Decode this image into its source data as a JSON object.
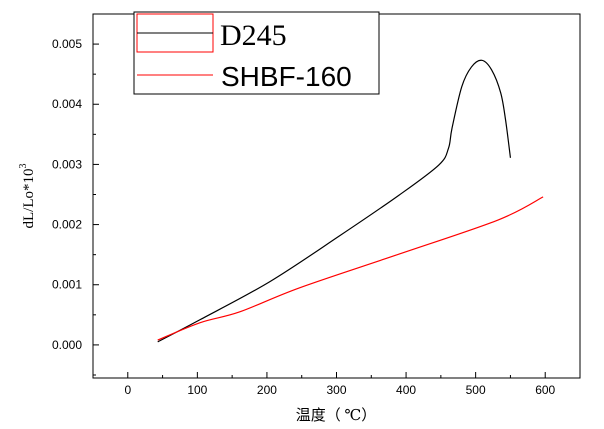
{
  "chart_data": {
    "type": "line",
    "title": "",
    "xlabel": "温度（ ℃）",
    "ylabel": "dL/Lo*10",
    "ylabel_superscript": "3",
    "xlim": [
      -50,
      650
    ],
    "ylim": [
      -0.00055,
      0.0055
    ],
    "xticks": [
      0,
      100,
      200,
      300,
      400,
      500,
      600
    ],
    "xtick_labels": [
      "0",
      "100",
      "200",
      "300",
      "400",
      "500",
      "600"
    ],
    "yticks": [
      0.0,
      0.001,
      0.002,
      0.003,
      0.004,
      0.005
    ],
    "ytick_labels": [
      "0.000",
      "0.001",
      "0.002",
      "0.003",
      "0.004",
      "0.005"
    ],
    "grid": false,
    "legend_position": "top-left",
    "series": [
      {
        "name": "D245",
        "color": "#000000",
        "x": [
          43,
          104,
          204,
          304,
          390,
          447,
          461,
          466,
          480,
          494,
          509,
          523,
          536,
          543,
          550
        ],
        "y": [
          5e-05,
          0.00042,
          0.00105,
          0.00181,
          0.00249,
          0.00299,
          0.00327,
          0.0036,
          0.00429,
          0.00462,
          0.00473,
          0.00457,
          0.00419,
          0.00374,
          0.00311
        ]
      },
      {
        "name": "SHBF-160",
        "color": "#ff0000",
        "x": [
          43,
          104,
          161,
          247,
          390,
          533,
          597
        ],
        "y": [
          8e-05,
          0.00037,
          0.00055,
          0.00095,
          0.00151,
          0.00208,
          0.00246
        ]
      }
    ]
  }
}
